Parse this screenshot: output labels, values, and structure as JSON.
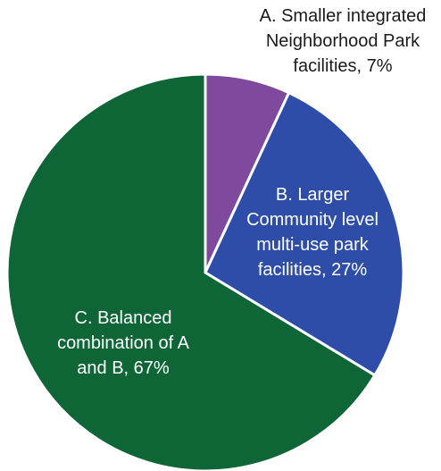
{
  "chart_data": {
    "type": "pie",
    "start_angle": "12 o'clock",
    "direction": "clockwise",
    "slices": [
      {
        "category": "A. Smaller integrated Neighborhood Park facilities",
        "value": 7,
        "label_lines": [
          "A. Smaller integrated",
          "Neighborhood Park",
          "facilities, 7%"
        ],
        "color": "#7F4A9E",
        "label_color": "#1a1a1a",
        "label_position": "outside"
      },
      {
        "category": "B. Larger Community level multi-use park facilities",
        "value": 27,
        "label_lines": [
          "B. Larger",
          "Community level",
          "multi-use park",
          "facilities, 27%"
        ],
        "color": "#2E4DA8",
        "label_color": "#ffffff",
        "label_position": "inside"
      },
      {
        "category": "C. Balanced combination of A and B",
        "value": 67,
        "label_lines": [
          "C. Balanced",
          "combination of A",
          "and B, 67%"
        ],
        "color": "#0E6636",
        "label_color": "#ffffff",
        "label_position": "inside"
      }
    ]
  }
}
